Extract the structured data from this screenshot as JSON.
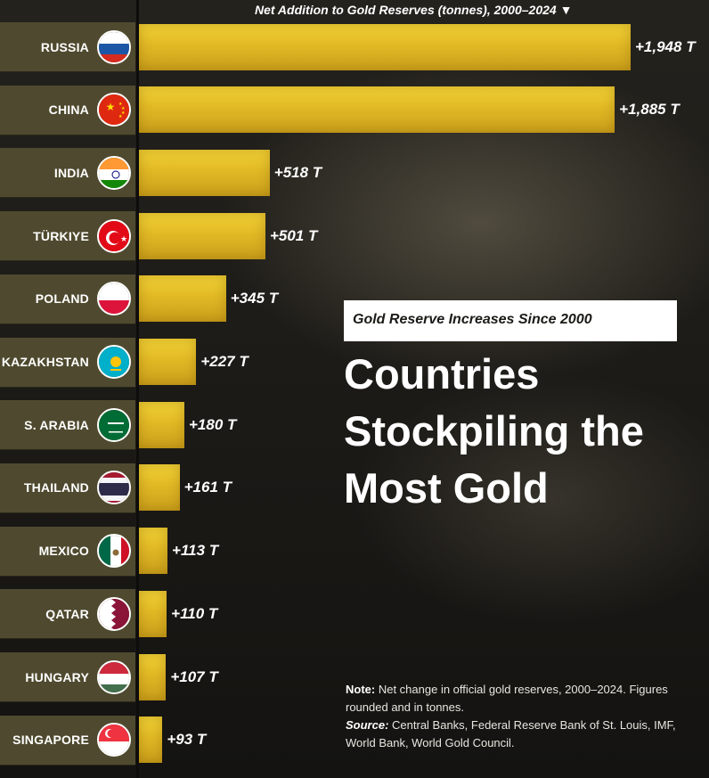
{
  "header": {
    "axis_title": "Net Addition to Gold Reserves (tonnes), 2000–2024 ▼"
  },
  "subtitle": "Gold Reserve Increases Since 2000",
  "headline": "Countries Stockpiling the Most Gold",
  "note": {
    "note_label": "Note:",
    "note_text": "Net change in official gold reserves, 2000–2024. Figures rounded and in tonnes.",
    "source_label": "Source:",
    "source_text": "Central Banks, Federal Reserve Bank of St. Louis, IMF, World Bank, World Gold Council."
  },
  "colors": {
    "bar": "#e1b925",
    "label_bg": "#4f4a2f",
    "background": "#1b1a17"
  },
  "chart_data": {
    "type": "bar",
    "orientation": "horizontal",
    "title": "Net Addition to Gold Reserves (tonnes), 2000–2024",
    "categories": [
      "RUSSIA",
      "CHINA",
      "INDIA",
      "TÜRKIYE",
      "POLAND",
      "KAZAKHSTAN",
      "S. ARABIA",
      "THAILAND",
      "MEXICO",
      "QATAR",
      "HUNGARY",
      "SINGAPORE"
    ],
    "values": [
      1948,
      1885,
      518,
      501,
      345,
      227,
      180,
      161,
      113,
      110,
      107,
      93
    ],
    "value_labels": [
      "+1,948 T",
      "+1,885 T",
      "+518 T",
      "+501 T",
      "+345 T",
      "+227 T",
      "+180 T",
      "+161 T",
      "+113 T",
      "+110 T",
      "+107 T",
      "+93 T"
    ],
    "flags": [
      "russia-flag",
      "china-flag",
      "india-flag",
      "turkey-flag",
      "poland-flag",
      "kazakhstan-flag",
      "saudi-arabia-flag",
      "thailand-flag",
      "mexico-flag",
      "qatar-flag",
      "hungary-flag",
      "singapore-flag"
    ],
    "xlim": [
      0,
      1948
    ],
    "grid": false,
    "legend": "none"
  }
}
